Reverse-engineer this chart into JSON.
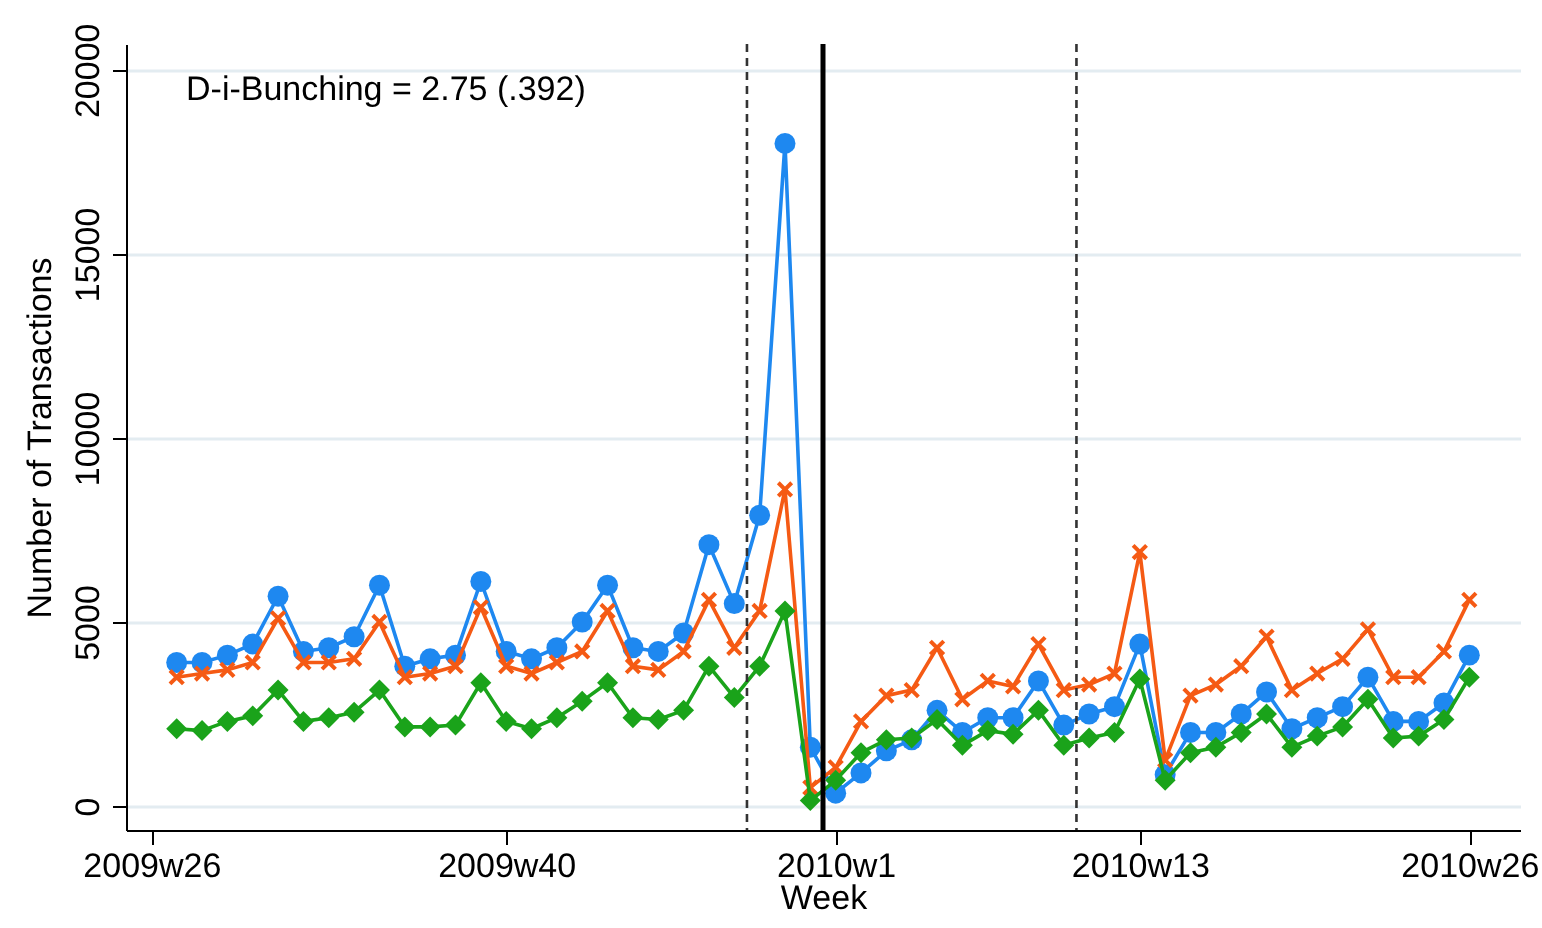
{
  "chart_data": {
    "type": "line",
    "xlabel": "Week",
    "ylabel": "Number of Transactions",
    "annotations": [
      "D-i-Bunching = 2.75 (.392)"
    ],
    "categories": [
      "2009w26",
      null,
      null,
      null,
      null,
      null,
      null,
      null,
      null,
      null,
      null,
      null,
      null,
      null,
      "2009w40",
      null,
      null,
      null,
      null,
      null,
      null,
      null,
      null,
      null,
      null,
      null,
      null,
      "2010w1",
      null,
      null,
      null,
      null,
      null,
      null,
      null,
      null,
      null,
      null,
      null,
      "2010w13",
      null,
      null,
      null,
      null,
      null,
      null,
      null,
      null,
      null,
      null,
      null,
      null,
      "2010w26"
    ],
    "ylim": [
      -650,
      20700
    ],
    "yticks": [
      0,
      5000,
      10000,
      15000,
      20000
    ],
    "grid": "y",
    "series": [
      {
        "color": "#1e88f0",
        "marker": "circle",
        "values": [
          null,
          3900,
          3900,
          4100,
          4400,
          5700,
          4200,
          4300,
          4600,
          6000,
          3800,
          4000,
          4100,
          6100,
          4200,
          4000,
          4300,
          5000,
          6000,
          4300,
          4200,
          4700,
          7100,
          5500,
          7900,
          18000,
          1600,
          350,
          900,
          1500,
          1800,
          2600,
          2000,
          2400,
          2400,
          3400,
          2200,
          2500,
          2700,
          4400,
          850,
          2000,
          2000,
          2500,
          3100,
          2100,
          2400,
          2700,
          3500,
          2300,
          2300,
          2800,
          4100
        ]
      },
      {
        "color": "#f55a14",
        "marker": "cross",
        "values": [
          null,
          3500,
          3600,
          3700,
          3900,
          5100,
          3900,
          3900,
          4000,
          5000,
          3500,
          3600,
          3800,
          5400,
          3800,
          3600,
          3900,
          4200,
          5300,
          3800,
          3700,
          4200,
          5600,
          4300,
          5300,
          8600,
          500,
          1050,
          2300,
          3000,
          3150,
          4300,
          2900,
          3400,
          3250,
          4400,
          3150,
          3300,
          3600,
          6900,
          1250,
          3000,
          3300,
          3800,
          4600,
          3150,
          3600,
          4000,
          4800,
          3500,
          3500,
          4200,
          5600
        ]
      },
      {
        "color": "#1aa31a",
        "marker": "diamond",
        "values": [
          null,
          2100,
          2050,
          2300,
          2450,
          3150,
          2300,
          2400,
          2550,
          3150,
          2150,
          2150,
          2200,
          3350,
          2300,
          2100,
          2400,
          2850,
          3350,
          2400,
          2350,
          2600,
          3800,
          2950,
          3800,
          5300,
          150,
          700,
          1450,
          1800,
          1850,
          2350,
          1650,
          2050,
          1950,
          2600,
          1650,
          1850,
          2000,
          3450,
          700,
          1450,
          1600,
          2000,
          2500,
          1600,
          1900,
          2150,
          2900,
          1850,
          1900,
          2350,
          3500
        ]
      }
    ]
  }
}
